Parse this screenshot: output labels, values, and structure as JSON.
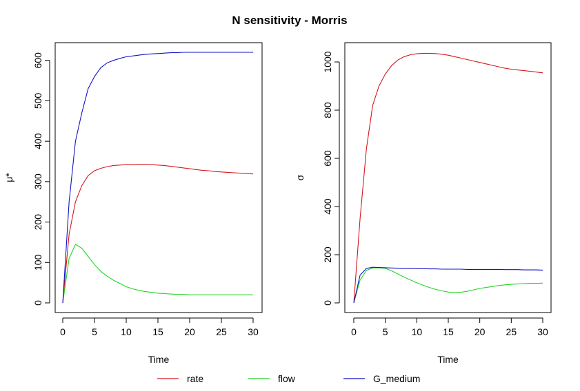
{
  "title": "N sensitivity - Morris",
  "colors": {
    "rate": "#d4161e",
    "flow": "#22d422",
    "G_medium": "#1212c6"
  },
  "legend": [
    {
      "name": "rate",
      "color": "#d4161e"
    },
    {
      "name": "flow",
      "color": "#22d422"
    },
    {
      "name": "G_medium",
      "color": "#1212c6"
    }
  ],
  "chart_data": [
    {
      "type": "line",
      "xlabel": "Time",
      "ylabel": "μ*",
      "xlim": [
        0,
        30
      ],
      "ylim": [
        0,
        620
      ],
      "xticks": [
        0,
        5,
        10,
        15,
        20,
        25,
        30
      ],
      "yticks": [
        0,
        100,
        200,
        300,
        400,
        500,
        600
      ],
      "x": [
        0,
        1,
        2,
        3,
        4,
        5,
        6,
        7,
        8,
        9,
        10,
        11,
        12,
        13,
        14,
        15,
        16,
        17,
        18,
        19,
        20,
        21,
        22,
        23,
        24,
        25,
        26,
        27,
        28,
        29,
        30
      ],
      "series": [
        {
          "name": "rate",
          "values": [
            0,
            170,
            250,
            290,
            315,
            327,
            333,
            337,
            340,
            341,
            342,
            342,
            343,
            343,
            342,
            341,
            340,
            338,
            336,
            334,
            332,
            330,
            328,
            327,
            325,
            324,
            323,
            322,
            321,
            320,
            319
          ]
        },
        {
          "name": "flow",
          "values": [
            0,
            110,
            145,
            135,
            115,
            95,
            78,
            66,
            56,
            48,
            40,
            35,
            31,
            28,
            26,
            24,
            23,
            22,
            21,
            21,
            20,
            20,
            20,
            20,
            20,
            20,
            20,
            20,
            20,
            20,
            20
          ]
        },
        {
          "name": "G_medium",
          "values": [
            0,
            250,
            400,
            470,
            530,
            560,
            582,
            594,
            600,
            605,
            609,
            611,
            613,
            615,
            616,
            617,
            618,
            619,
            619,
            620,
            620,
            620,
            620,
            620,
            620,
            620,
            620,
            620,
            620,
            620,
            620
          ]
        }
      ]
    },
    {
      "type": "line",
      "xlabel": "Time",
      "ylabel": "σ",
      "xlim": [
        0,
        30
      ],
      "ylim": [
        0,
        1040
      ],
      "xticks": [
        0,
        5,
        10,
        15,
        20,
        25,
        30
      ],
      "yticks": [
        0,
        200,
        400,
        600,
        800,
        1000
      ],
      "x": [
        0,
        1,
        2,
        3,
        4,
        5,
        6,
        7,
        8,
        9,
        10,
        11,
        12,
        13,
        14,
        15,
        16,
        17,
        18,
        19,
        20,
        21,
        22,
        23,
        24,
        25,
        26,
        27,
        28,
        29,
        30
      ],
      "series": [
        {
          "name": "rate",
          "values": [
            0,
            350,
            640,
            820,
            900,
            950,
            985,
            1008,
            1022,
            1030,
            1034,
            1036,
            1036,
            1035,
            1032,
            1028,
            1022,
            1016,
            1010,
            1004,
            998,
            992,
            986,
            980,
            974,
            970,
            967,
            964,
            961,
            958,
            955
          ]
        },
        {
          "name": "flow",
          "values": [
            0,
            95,
            135,
            145,
            146,
            143,
            133,
            120,
            107,
            95,
            83,
            73,
            64,
            56,
            50,
            45,
            43,
            44,
            48,
            54,
            60,
            64,
            68,
            72,
            75,
            77,
            79,
            80,
            81,
            81,
            82
          ]
        },
        {
          "name": "G_medium",
          "values": [
            0,
            115,
            143,
            148,
            147,
            146,
            145,
            144,
            143,
            143,
            142,
            142,
            141,
            141,
            140,
            140,
            140,
            140,
            139,
            139,
            139,
            139,
            139,
            139,
            138,
            138,
            138,
            137,
            137,
            137,
            136
          ]
        }
      ]
    }
  ]
}
